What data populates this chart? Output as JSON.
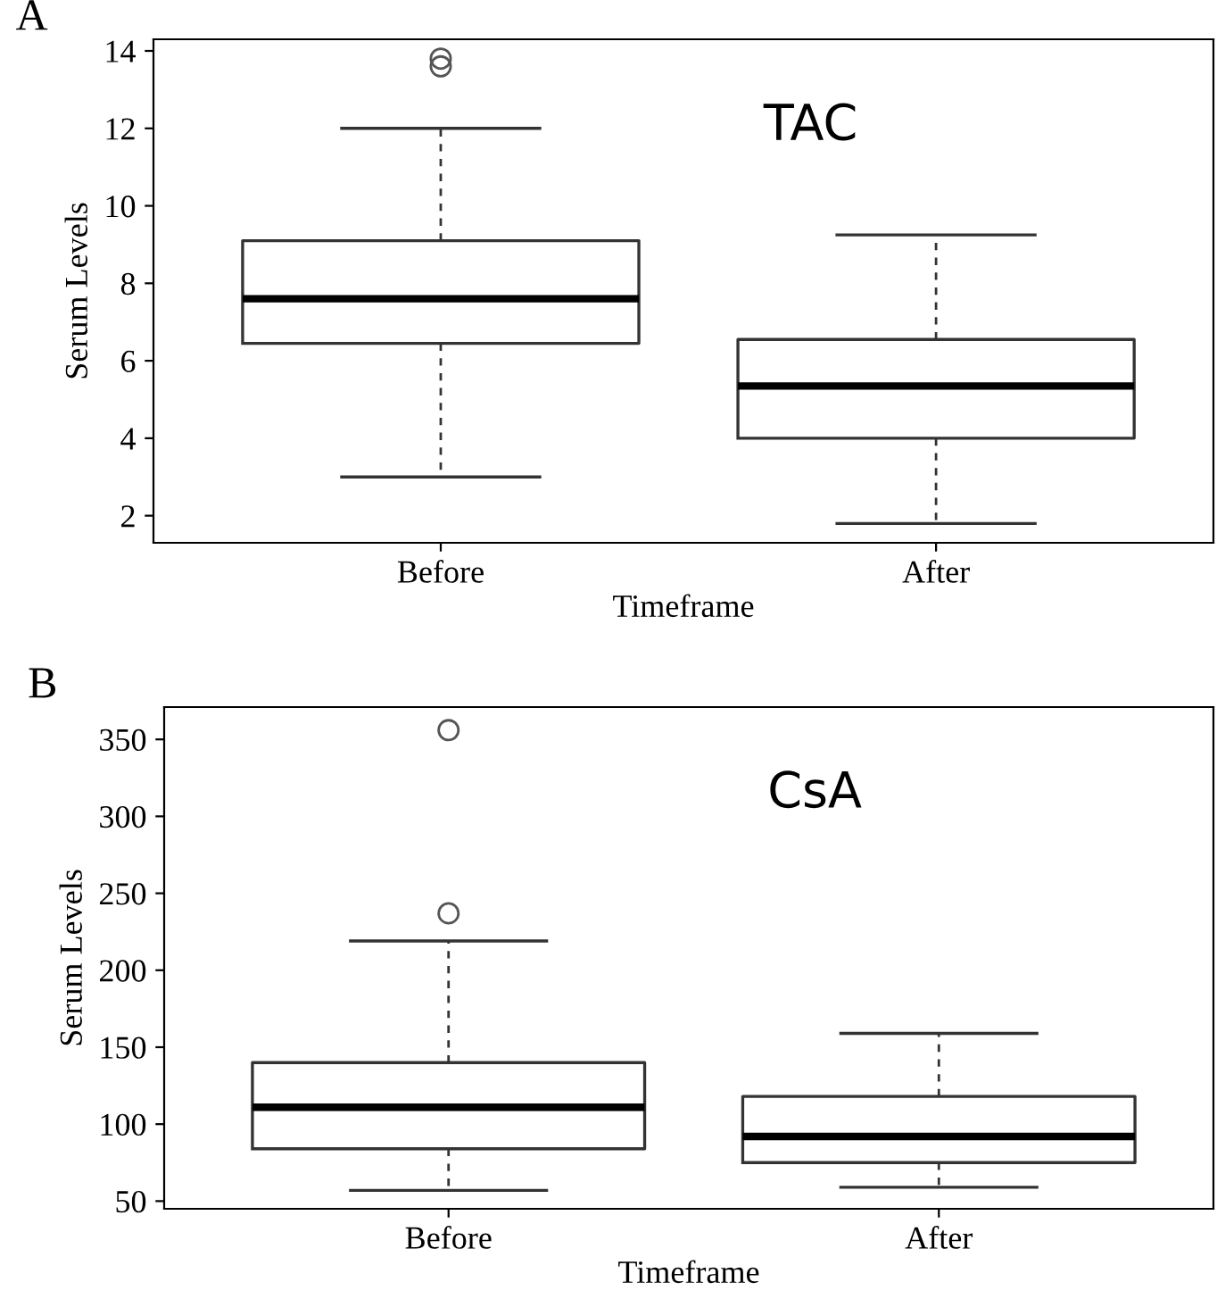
{
  "chart_data": [
    {
      "type": "box",
      "title": "A",
      "xlabel": "Timeframe",
      "ylabel": "Serum Levels",
      "categories": [
        "Before",
        "After"
      ],
      "boxes": [
        {
          "low": 3.0,
          "q1": 6.45,
          "median": 7.6,
          "q3": 9.1,
          "high": 12.0,
          "outliers": [
            13.6,
            13.8
          ]
        },
        {
          "low": 1.8,
          "q1": 4.0,
          "median": 5.35,
          "q3": 6.55,
          "high": 9.25
        }
      ],
      "ylim": [
        1.3,
        14.3
      ],
      "yticks": [
        2,
        4,
        6,
        8,
        10,
        12,
        14
      ],
      "grid": false,
      "annotations": [
        "TAC"
      ]
    },
    {
      "type": "box",
      "title": "B",
      "xlabel": "Timeframe",
      "ylabel": "Serum Levels",
      "categories": [
        "Before",
        "After"
      ],
      "boxes": [
        {
          "low": 57,
          "q1": 84,
          "median": 111,
          "q3": 140,
          "high": 219,
          "outliers": [
            356,
            237
          ]
        },
        {
          "low": 59,
          "q1": 75,
          "median": 92,
          "q3": 118,
          "high": 159
        }
      ],
      "ylim": [
        45,
        371
      ],
      "yticks": [
        50,
        100,
        150,
        200,
        250,
        300,
        350
      ],
      "grid": false,
      "annotations": [
        "CsA"
      ]
    }
  ]
}
